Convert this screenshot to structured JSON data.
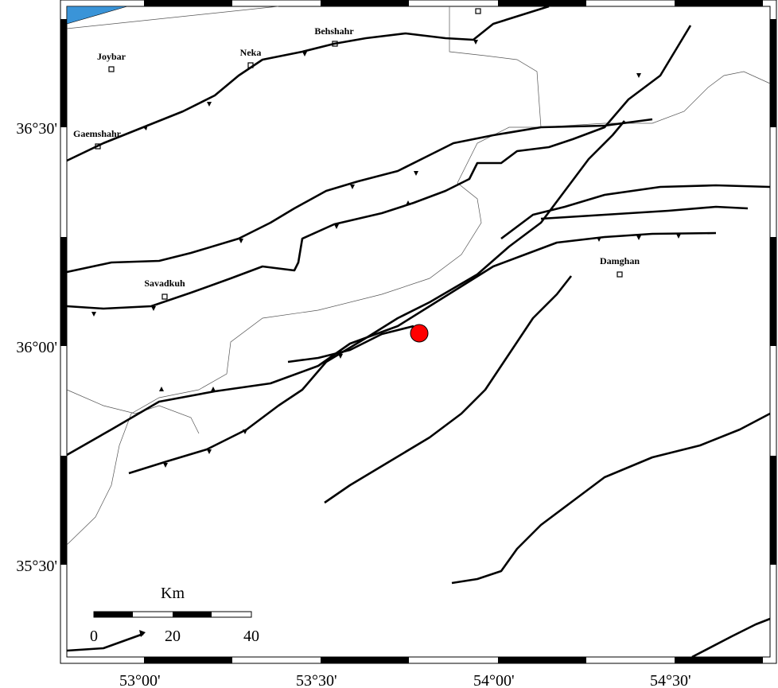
{
  "map": {
    "lon_labels": [
      "53°00'",
      "53°30'",
      "54°00'",
      "54°30'"
    ],
    "lat_labels": [
      "36°30'",
      "36°00'",
      "35°30'"
    ],
    "cities": [
      {
        "name": "Joybar"
      },
      {
        "name": "Neka"
      },
      {
        "name": "Behshahr"
      },
      {
        "name": "Gaemshahr"
      },
      {
        "name": "Savadkuh"
      },
      {
        "name": "Damghan"
      }
    ],
    "scale_bar": {
      "unit": "Km",
      "labels": [
        "0",
        "20",
        "40"
      ]
    }
  }
}
